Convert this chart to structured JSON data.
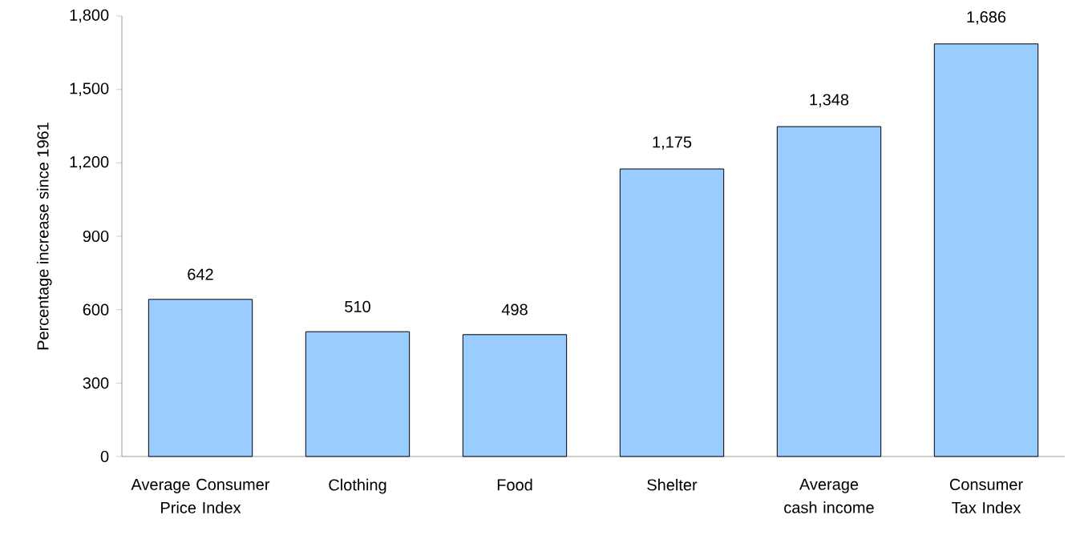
{
  "chart_data": {
    "type": "bar",
    "ylabel": "Percentage increase since 1961",
    "categories": [
      "Average Consumer Price Index",
      "Clothing",
      "Food",
      "Shelter",
      "Average cash income",
      "Consumer Tax Index"
    ],
    "values": [
      642,
      510,
      498,
      1175,
      1348,
      1686
    ],
    "value_labels": [
      "642",
      "510",
      "498",
      "1,175",
      "1,348",
      "1,686"
    ],
    "color": "#99ccff",
    "ylim": [
      0,
      1800
    ],
    "yticks": [
      0,
      300,
      600,
      900,
      {
        "value": 1200,
        "label": "1,200"
      },
      {
        "value": 1500,
        "label": "1,500"
      },
      {
        "value": 1800,
        "label": "1,800"
      }
    ],
    "grid": false
  }
}
